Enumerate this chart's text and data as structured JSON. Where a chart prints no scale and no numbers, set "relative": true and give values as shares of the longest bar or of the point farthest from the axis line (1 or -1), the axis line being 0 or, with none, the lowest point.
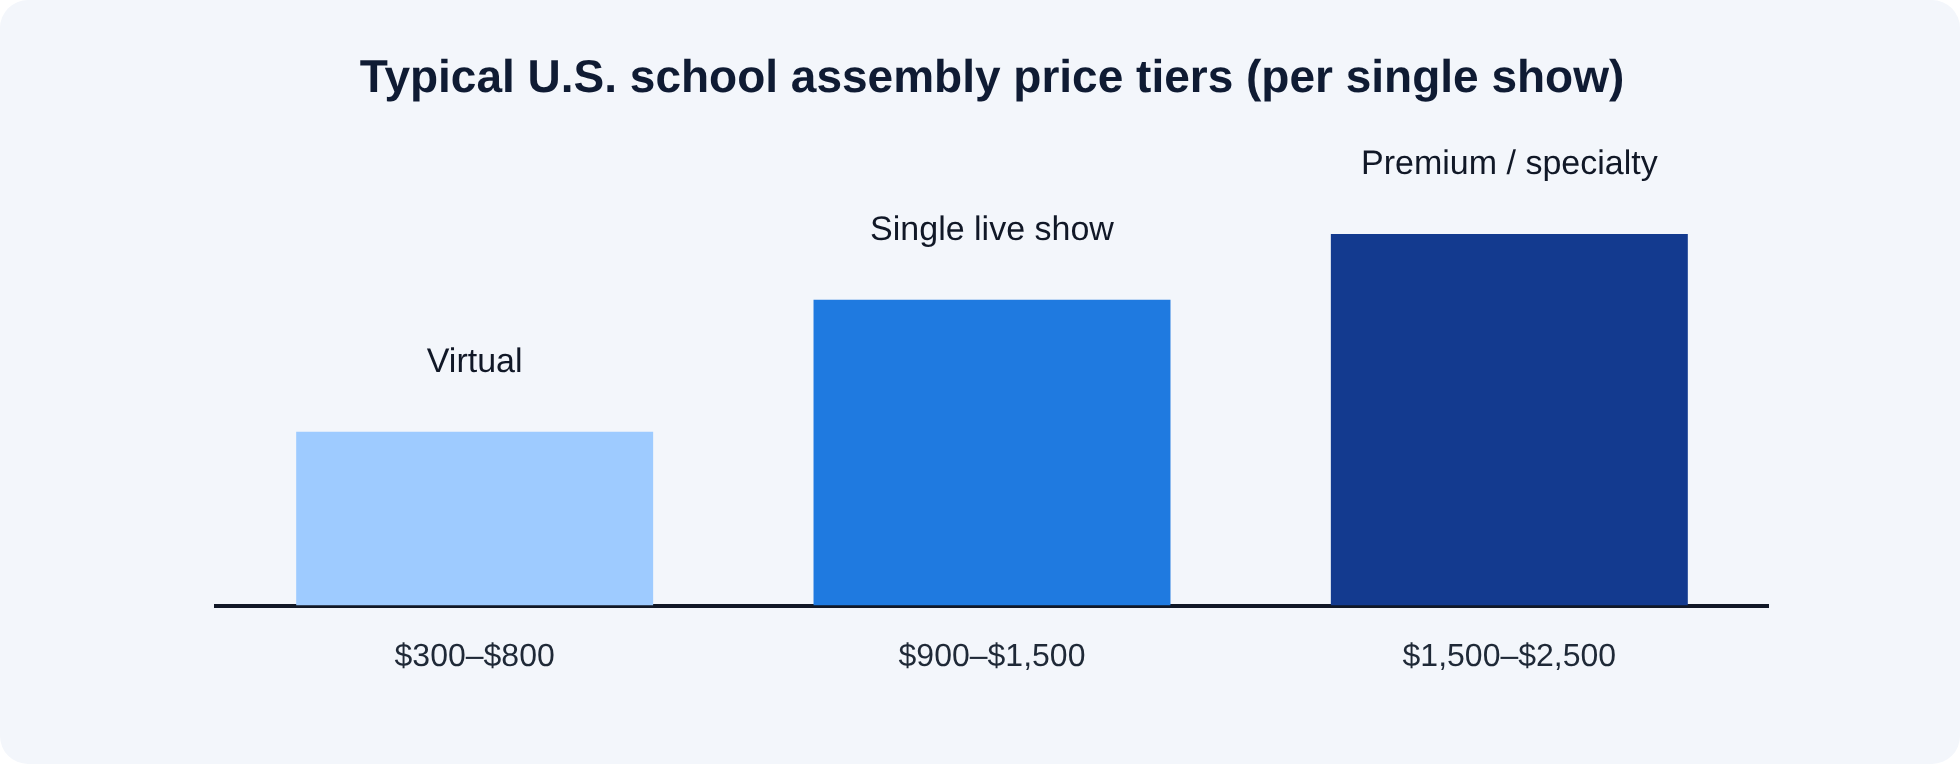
{
  "chart_data": {
    "type": "bar",
    "title": "Typical U.S. school assembly price tiers (per single show)",
    "categories": [
      "$300–$800",
      "$900–$1,500",
      "$1,500–$2,500"
    ],
    "values": [
      0.468,
      0.823,
      1
    ],
    "colors": [
      "#9ecbff",
      "#1f7ae0",
      "#133a8f"
    ],
    "relative": true,
    "grid": false,
    "legend": false,
    "annotations": [
      {
        "text": "Virtual",
        "x": "$300–$800",
        "y": 0.468
      },
      {
        "text": "Single live show",
        "x": "$900–$1,500",
        "y": 0.823
      },
      {
        "text": "Premium / specialty",
        "x": "$1,500–$2,500",
        "y": 1
      }
    ]
  }
}
